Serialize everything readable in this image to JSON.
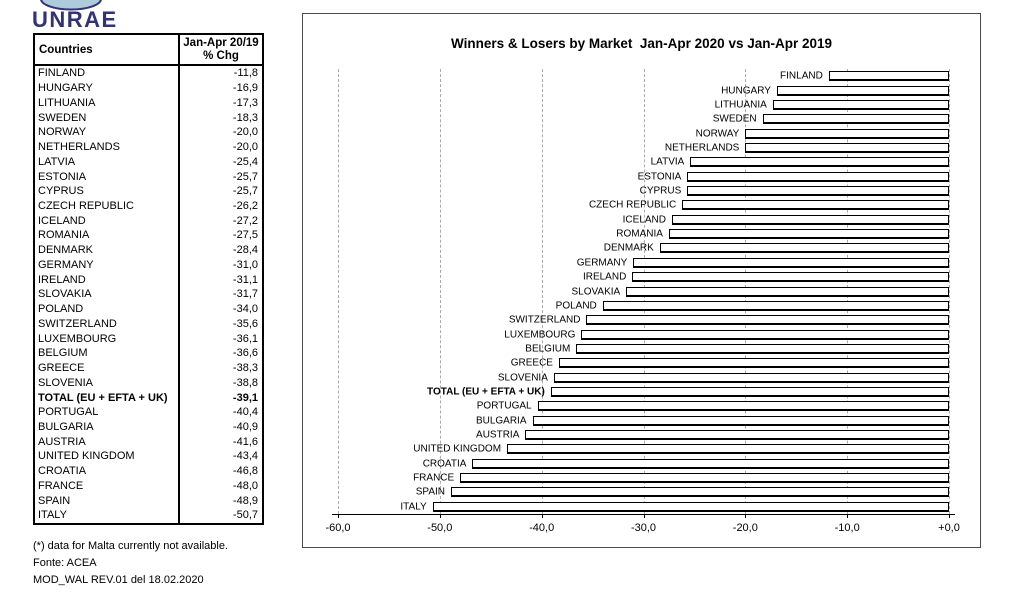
{
  "logo": {
    "text": "UNRAE"
  },
  "table": {
    "header": {
      "countries": "Countries",
      "chg_line1": "Jan-Apr 20/19",
      "chg_line2": "% Chg"
    },
    "rows": [
      {
        "country": "FINLAND",
        "value": "-11,8",
        "bold": false
      },
      {
        "country": "HUNGARY",
        "value": "-16,9",
        "bold": false
      },
      {
        "country": "LITHUANIA",
        "value": "-17,3",
        "bold": false
      },
      {
        "country": "SWEDEN",
        "value": "-18,3",
        "bold": false
      },
      {
        "country": "NORWAY",
        "value": "-20,0",
        "bold": false
      },
      {
        "country": "NETHERLANDS",
        "value": "-20,0",
        "bold": false
      },
      {
        "country": "LATVIA",
        "value": "-25,4",
        "bold": false
      },
      {
        "country": "ESTONIA",
        "value": "-25,7",
        "bold": false
      },
      {
        "country": "CYPRUS",
        "value": "-25,7",
        "bold": false
      },
      {
        "country": "CZECH REPUBLIC",
        "value": "-26,2",
        "bold": false
      },
      {
        "country": "ICELAND",
        "value": "-27,2",
        "bold": false
      },
      {
        "country": "ROMANIA",
        "value": "-27,5",
        "bold": false
      },
      {
        "country": "DENMARK",
        "value": "-28,4",
        "bold": false
      },
      {
        "country": "GERMANY",
        "value": "-31,0",
        "bold": false
      },
      {
        "country": "IRELAND",
        "value": "-31,1",
        "bold": false
      },
      {
        "country": "SLOVAKIA",
        "value": "-31,7",
        "bold": false
      },
      {
        "country": "POLAND",
        "value": "-34,0",
        "bold": false
      },
      {
        "country": "SWITZERLAND",
        "value": "-35,6",
        "bold": false
      },
      {
        "country": "LUXEMBOURG",
        "value": "-36,1",
        "bold": false
      },
      {
        "country": "BELGIUM",
        "value": "-36,6",
        "bold": false
      },
      {
        "country": "GREECE",
        "value": "-38,3",
        "bold": false
      },
      {
        "country": "SLOVENIA",
        "value": "-38,8",
        "bold": false
      },
      {
        "country": "TOTAL (EU + EFTA + UK)",
        "value": "-39,1",
        "bold": true
      },
      {
        "country": "PORTUGAL",
        "value": "-40,4",
        "bold": false
      },
      {
        "country": "BULGARIA",
        "value": "-40,9",
        "bold": false
      },
      {
        "country": "AUSTRIA",
        "value": "-41,6",
        "bold": false
      },
      {
        "country": "UNITED KINGDOM",
        "value": "-43,4",
        "bold": false
      },
      {
        "country": "CROATIA",
        "value": "-46,8",
        "bold": false
      },
      {
        "country": "FRANCE",
        "value": "-48,0",
        "bold": false
      },
      {
        "country": "SPAIN",
        "value": "-48,9",
        "bold": false
      },
      {
        "country": "ITALY",
        "value": "-50,7",
        "bold": false
      }
    ]
  },
  "footer": {
    "line1": "(*) data for Malta currently not available.",
    "line2": "Fonte: ACEA",
    "line3": "MOD_WAL REV.01 del 18.02.2020"
  },
  "chart_data": {
    "type": "bar",
    "orientation": "horizontal",
    "title": "Winners & Losers by Market  Jan-Apr 2020 vs Jan-Apr 2019",
    "categories": [
      "FINLAND",
      "HUNGARY",
      "LITHUANIA",
      "SWEDEN",
      "NORWAY",
      "NETHERLANDS",
      "LATVIA",
      "ESTONIA",
      "CYPRUS",
      "CZECH REPUBLIC",
      "ICELAND",
      "ROMANIA",
      "DENMARK",
      "GERMANY",
      "IRELAND",
      "SLOVAKIA",
      "POLAND",
      "SWITZERLAND",
      "LUXEMBOURG",
      "BELGIUM",
      "GREECE",
      "SLOVENIA",
      "TOTAL (EU + EFTA + UK)",
      "PORTUGAL",
      "BULGARIA",
      "AUSTRIA",
      "UNITED KINGDOM",
      "CROATIA",
      "FRANCE",
      "SPAIN",
      "ITALY"
    ],
    "values": [
      -11.8,
      -16.9,
      -17.3,
      -18.3,
      -20.0,
      -20.0,
      -25.4,
      -25.7,
      -25.7,
      -26.2,
      -27.2,
      -27.5,
      -28.4,
      -31.0,
      -31.1,
      -31.7,
      -34.0,
      -35.6,
      -36.1,
      -36.6,
      -38.3,
      -38.8,
      -39.1,
      -40.4,
      -40.9,
      -41.6,
      -43.4,
      -46.8,
      -48.0,
      -48.9,
      -50.7
    ],
    "bold_category": "TOTAL (EU + EFTA + UK)",
    "xlabel": "",
    "ylabel": "",
    "xlim": [
      -60,
      0
    ],
    "xtick_values": [
      -60,
      -50,
      -40,
      -30,
      -20,
      -10,
      0
    ],
    "xticks": [
      "-60,0",
      "-50,0",
      "-40,0",
      "-30,0",
      "-20,0",
      "-10,0",
      "+0,0"
    ],
    "grid": "vertical-dashed",
    "legend": "none",
    "bar_fill": "#ffffff",
    "bar_border": "#000000"
  }
}
